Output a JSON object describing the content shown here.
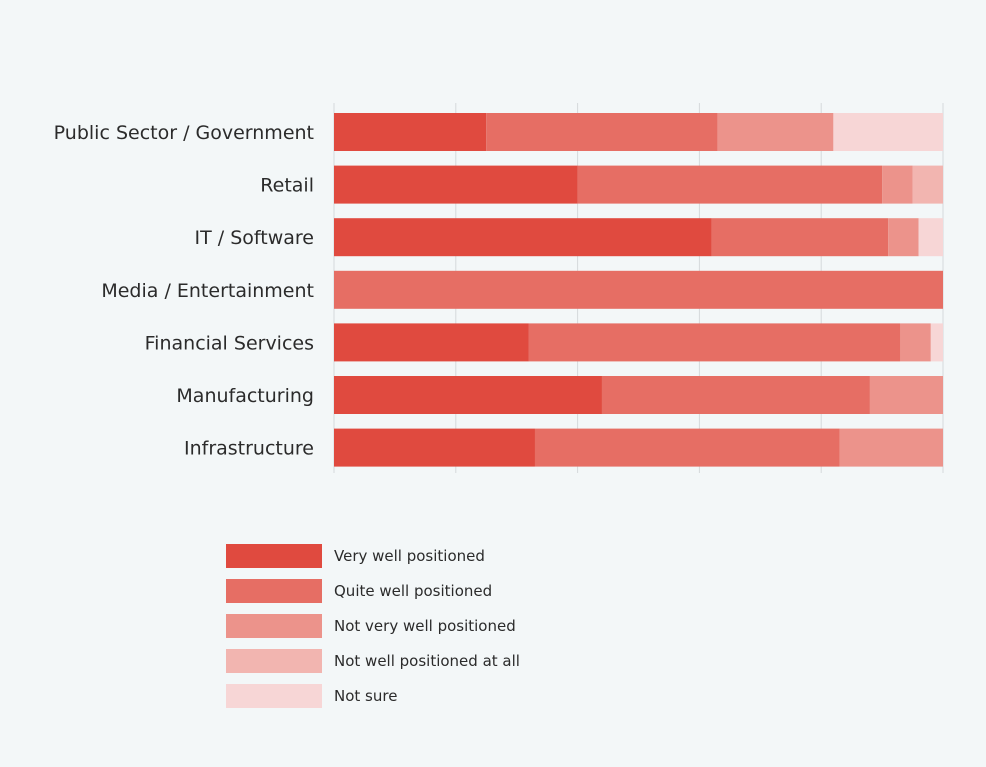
{
  "chart_data": {
    "type": "bar",
    "orientation": "horizontal",
    "stacked": true,
    "normalized_percent": true,
    "xlim": [
      0,
      100
    ],
    "grid": true,
    "legend_position": "bottom",
    "categories": [
      "Public Sector / Government",
      "Retail",
      "IT / Software",
      "Media / Entertainment",
      "Financial Services",
      "Manufacturing",
      "Infrastructure"
    ],
    "series": [
      {
        "name": "Very well positioned",
        "color": "#e04a3f",
        "values": [
          25,
          40,
          62,
          0,
          32,
          44,
          33
        ]
      },
      {
        "name": "Quite well positioned",
        "color": "#e66e64",
        "values": [
          38,
          50,
          29,
          100,
          61,
          44,
          50
        ]
      },
      {
        "name": "Not very well positioned",
        "color": "#ec938b",
        "values": [
          19,
          5,
          5,
          0,
          5,
          12,
          17
        ]
      },
      {
        "name": "Not well positioned at all",
        "color": "#f2b5b0",
        "values": [
          0,
          5,
          0,
          0,
          0,
          0,
          0
        ]
      },
      {
        "name": "Not sure",
        "color": "#f7d6d6",
        "values": [
          18,
          0,
          4,
          0,
          2,
          0,
          0
        ]
      }
    ]
  }
}
